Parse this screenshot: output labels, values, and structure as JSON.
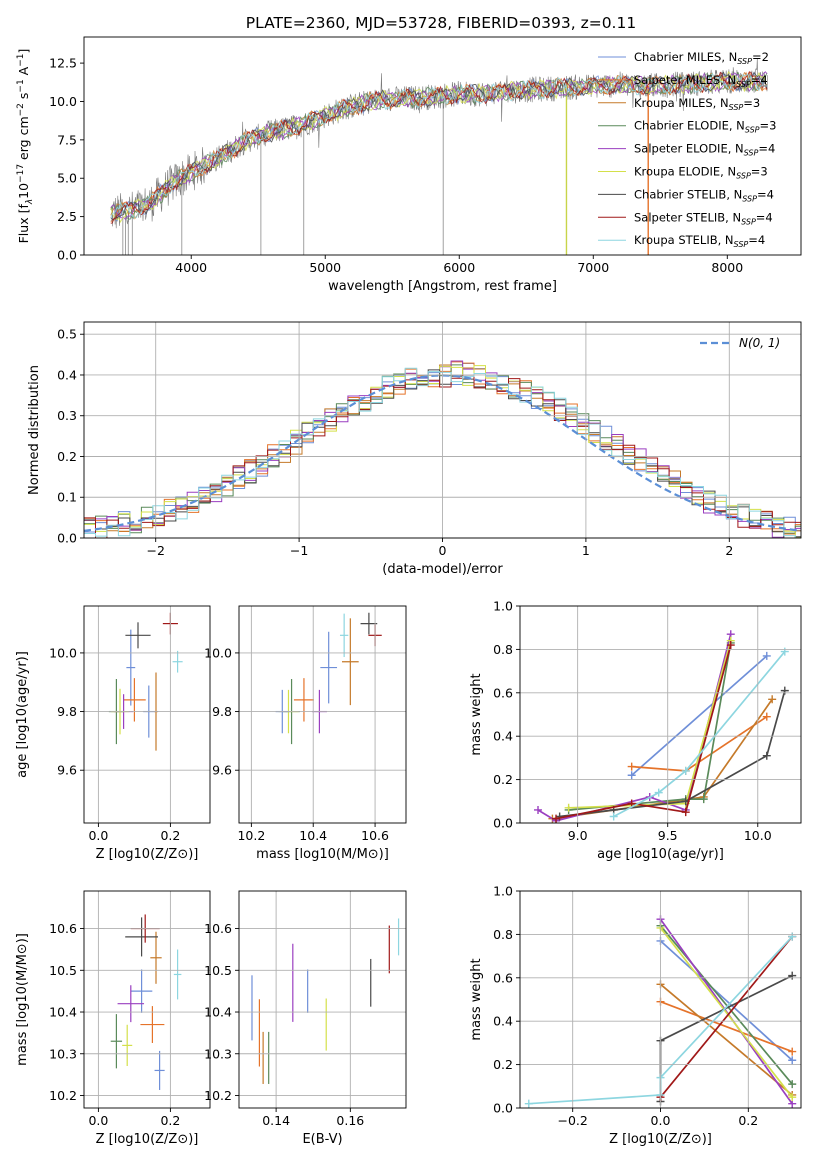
{
  "figure": {
    "title": "PLATE=2360, MJD=53728, FIBERID=0393, z=0.11"
  },
  "colors": {
    "series": [
      "#6f8fd8",
      "#e5732a",
      "#c57a2a",
      "#5a8a5a",
      "#9a3fc0",
      "#d4e04a",
      "#4a4a4a",
      "#a01818",
      "#8dd6e0"
    ],
    "spectrum": "#7a7a7a",
    "gaussian": "#5b8fd6",
    "grid": "#b0b0b0"
  },
  "legend_spectrum": [
    {
      "label": "Chabrier MILES, N",
      "sub": "SSP",
      "suffix": "=2"
    },
    {
      "label": "Salpeter MILES, N",
      "sub": "SSP",
      "suffix": "=4"
    },
    {
      "label": "Kroupa MILES, N",
      "sub": "SSP",
      "suffix": "=3"
    },
    {
      "label": "Chabrier ELODIE, N",
      "sub": "SSP",
      "suffix": "=3"
    },
    {
      "label": "Salpeter ELODIE, N",
      "sub": "SSP",
      "suffix": "=4"
    },
    {
      "label": "Kroupa ELODIE, N",
      "sub": "SSP",
      "suffix": "=3"
    },
    {
      "label": "Chabrier STELIB, N",
      "sub": "SSP",
      "suffix": "=4"
    },
    {
      "label": "Salpeter STELIB, N",
      "sub": "SSP",
      "suffix": "=4"
    },
    {
      "label": "Kroupa STELIB, N",
      "sub": "SSP",
      "suffix": "=4"
    }
  ],
  "chart_data": [
    {
      "id": "spectrum",
      "type": "line",
      "xlabel": "wavelength [Angstrom, rest frame]",
      "ylabel_parts": {
        "a": "Flux [f",
        "b": "λ",
        "c": "10",
        "d": "−17",
        "e": " erg cm",
        "f": "−2",
        "g": " s",
        "h": "−1",
        "i": " A",
        "j": "−1",
        "k": "]"
      },
      "xlim": [
        3200,
        8550
      ],
      "ylim": [
        0,
        14.2
      ],
      "xticks": [
        4000,
        5000,
        6000,
        7000,
        8000
      ],
      "yticks": [
        0.0,
        2.5,
        5.0,
        7.5,
        10.0,
        12.5
      ],
      "continuum": [
        [
          3400,
          2.7
        ],
        [
          3550,
          2.9
        ],
        [
          3700,
          3.4
        ],
        [
          3850,
          4.6
        ],
        [
          4000,
          5.4
        ],
        [
          4200,
          6.3
        ],
        [
          4400,
          7.4
        ],
        [
          4600,
          8.0
        ],
        [
          4800,
          8.4
        ],
        [
          5000,
          9.1
        ],
        [
          5200,
          9.7
        ],
        [
          5400,
          10.1
        ],
        [
          5600,
          10.2
        ],
        [
          5800,
          10.3
        ],
        [
          6000,
          10.5
        ],
        [
          6200,
          10.5
        ],
        [
          6400,
          10.7
        ],
        [
          6600,
          10.8
        ],
        [
          6800,
          10.9
        ],
        [
          7000,
          11.0
        ],
        [
          7200,
          11.1
        ],
        [
          7400,
          11.0
        ],
        [
          7600,
          11.1
        ],
        [
          7800,
          11.2
        ],
        [
          8000,
          11.3
        ],
        [
          8200,
          11.3
        ],
        [
          8300,
          11.3
        ]
      ]
    },
    {
      "id": "residuals",
      "type": "histogram",
      "xlabel": "(data-model)/error",
      "ylabel": "Normed distribution",
      "xlim": [
        -2.5,
        2.5
      ],
      "ylim": [
        0,
        0.53
      ],
      "xticks": [
        -2,
        -1,
        0,
        1,
        2
      ],
      "yticks": [
        0.0,
        0.1,
        0.2,
        0.3,
        0.4,
        0.5
      ],
      "legend": "N(0, 1)",
      "bin_width": 0.1,
      "bin_start": -2.5,
      "base_values": [
        0.02,
        0.025,
        0.03,
        0.035,
        0.04,
        0.05,
        0.055,
        0.07,
        0.075,
        0.09,
        0.1,
        0.115,
        0.13,
        0.15,
        0.165,
        0.18,
        0.2,
        0.215,
        0.235,
        0.255,
        0.275,
        0.29,
        0.31,
        0.33,
        0.34,
        0.355,
        0.37,
        0.38,
        0.39,
        0.395,
        0.4,
        0.4,
        0.405,
        0.4,
        0.395,
        0.39,
        0.38,
        0.37,
        0.36,
        0.345,
        0.33,
        0.315,
        0.3,
        0.28,
        0.26,
        0.245,
        0.225,
        0.205,
        0.19,
        0.17,
        0.155,
        0.135,
        0.12,
        0.105,
        0.09,
        0.08,
        0.068,
        0.055,
        0.045,
        0.04,
        0.03,
        0.025,
        0.02
      ]
    },
    {
      "id": "age-vs-Z",
      "type": "scatter",
      "xlabel": "Z [log10(Z/Z⊙)]",
      "ylabel": "age  [log10(age/yr)]",
      "xlim": [
        -0.04,
        0.31
      ],
      "ylim": [
        9.42,
        10.16
      ],
      "xticks": [
        0.0,
        0.2
      ],
      "yticks": [
        9.6,
        9.8,
        10.0
      ],
      "points": [
        [
          0.09,
          9.95,
          0.07,
          0.35
        ],
        [
          0.1,
          9.84,
          0.18,
          0.2
        ],
        [
          0.16,
          9.8,
          0.03,
          0.36
        ],
        [
          0.05,
          9.8,
          0.12,
          0.3
        ],
        [
          0.07,
          9.8,
          0.15,
          0.16
        ],
        [
          0.06,
          9.8,
          0.14,
          0.21
        ],
        [
          0.11,
          10.06,
          0.2,
          0.12
        ],
        [
          0.2,
          10.1,
          0.12,
          0.1
        ],
        [
          0.22,
          9.97,
          0.08,
          0.1
        ],
        [
          0.14,
          9.8,
          0.09,
          0.24
        ]
      ]
    },
    {
      "id": "age-vs-mass",
      "type": "scatter",
      "xlabel": "mass [log10(M/M⊙)]",
      "ylabel": "",
      "xlim": [
        10.16,
        10.7
      ],
      "ylim": [
        9.42,
        10.16
      ],
      "xticks": [
        10.2,
        10.4,
        10.6
      ],
      "yticks": [
        9.6,
        9.8,
        10.0
      ],
      "points": [
        [
          10.45,
          9.95,
          0.1,
          0.33
        ],
        [
          10.37,
          9.84,
          0.12,
          0.2
        ],
        [
          10.52,
          9.97,
          0.1,
          0.4
        ],
        [
          10.33,
          9.8,
          0.1,
          0.3
        ],
        [
          10.42,
          9.8,
          0.09,
          0.2
        ],
        [
          10.32,
          9.8,
          0.12,
          0.2
        ],
        [
          10.58,
          10.1,
          0.1,
          0.1
        ],
        [
          10.6,
          10.06,
          0.08,
          0.1
        ],
        [
          10.5,
          10.06,
          0.05,
          0.2
        ],
        [
          10.3,
          9.8,
          0.08,
          0.2
        ]
      ]
    },
    {
      "id": "massweight-vs-age",
      "type": "line",
      "xlabel": "age  [log10(age/yr)]",
      "ylabel": "mass weight",
      "xlim": [
        8.68,
        10.24
      ],
      "ylim": [
        0.0,
        1.0
      ],
      "xticks": [
        9.0,
        9.5,
        10.0
      ],
      "yticks": [
        0.0,
        0.2,
        0.4,
        0.6,
        0.8,
        1.0
      ],
      "series": [
        {
          "values": [
            [
              9.3,
              0.22
            ],
            [
              10.05,
              0.77
            ]
          ]
        },
        {
          "values": [
            [
              9.3,
              0.26
            ],
            [
              9.6,
              0.24
            ],
            [
              10.05,
              0.49
            ]
          ]
        },
        {
          "values": [
            [
              8.86,
              0.02
            ],
            [
              9.2,
              0.06
            ],
            [
              9.7,
              0.12
            ],
            [
              10.08,
              0.57
            ]
          ]
        },
        {
          "values": [
            [
              8.95,
              0.06
            ],
            [
              9.6,
              0.11
            ],
            [
              9.7,
              0.11
            ],
            [
              9.85,
              0.83
            ]
          ]
        },
        {
          "values": [
            [
              8.78,
              0.06
            ],
            [
              8.88,
              0.01
            ],
            [
              9.4,
              0.12
            ],
            [
              9.6,
              0.06
            ],
            [
              9.85,
              0.87
            ]
          ]
        },
        {
          "values": [
            [
              8.95,
              0.07
            ],
            [
              9.6,
              0.09
            ],
            [
              9.85,
              0.84
            ]
          ]
        },
        {
          "values": [
            [
              8.9,
              0.03
            ],
            [
              9.2,
              0.06
            ],
            [
              9.6,
              0.1
            ],
            [
              10.05,
              0.31
            ],
            [
              10.15,
              0.61
            ]
          ]
        },
        {
          "values": [
            [
              8.88,
              0.02
            ],
            [
              9.3,
              0.09
            ],
            [
              9.6,
              0.05
            ],
            [
              9.85,
              0.82
            ]
          ]
        },
        {
          "values": [
            [
              9.2,
              0.03
            ],
            [
              9.45,
              0.14
            ],
            [
              9.6,
              0.24
            ],
            [
              10.15,
              0.79
            ]
          ]
        }
      ]
    },
    {
      "id": "mass-vs-Z",
      "type": "scatter",
      "xlabel": "Z [log10(Z/Z⊙)]",
      "ylabel": "mass [log10(M/M⊙)]",
      "xlim": [
        -0.04,
        0.31
      ],
      "ylim": [
        10.17,
        10.69
      ],
      "xticks": [
        0.0,
        0.2
      ],
      "yticks": [
        10.2,
        10.3,
        10.4,
        10.5,
        10.6
      ],
      "points": [
        [
          0.12,
          10.45,
          0.17,
          0.2
        ],
        [
          0.15,
          10.37,
          0.19,
          0.17
        ],
        [
          0.16,
          10.53,
          0.09,
          0.24
        ],
        [
          0.05,
          10.33,
          0.09,
          0.25
        ],
        [
          0.09,
          10.42,
          0.21,
          0.17
        ],
        [
          0.08,
          10.32,
          0.08,
          0.19
        ],
        [
          0.12,
          10.58,
          0.26,
          0.18
        ],
        [
          0.13,
          10.6,
          0.23,
          0.13
        ],
        [
          0.22,
          10.49,
          0.06,
          0.23
        ],
        [
          0.17,
          10.26,
          0.08,
          0.18
        ]
      ]
    },
    {
      "id": "mass-vs-EBV",
      "type": "scatter",
      "xlabel": "E(B-V)",
      "ylabel": "",
      "xlim": [
        0.13,
        0.175
      ],
      "ylim": [
        10.17,
        10.69
      ],
      "xticks": [
        0.14,
        0.16
      ],
      "yticks": [
        10.2,
        10.3,
        10.4,
        10.5,
        10.6
      ],
      "points": [
        [
          0.1335,
          10.41,
          0,
          0.3
        ],
        [
          0.1355,
          10.35,
          0,
          0.31
        ],
        [
          0.1365,
          10.29,
          0,
          0.24
        ],
        [
          0.138,
          10.29,
          0,
          0.24
        ],
        [
          0.1445,
          10.47,
          0,
          0.36
        ],
        [
          0.1535,
          10.37,
          0,
          0.24
        ],
        [
          0.1655,
          10.47,
          0,
          0.22
        ],
        [
          0.1705,
          10.55,
          0,
          0.22
        ],
        [
          0.173,
          10.58,
          0,
          0.17
        ],
        [
          0.1485,
          10.45,
          0,
          0.2
        ]
      ]
    },
    {
      "id": "massweight-vs-Z",
      "type": "line",
      "xlabel": "Z [log10(Z/Z⊙)]",
      "ylabel": "mass weight",
      "xlim": [
        -0.32,
        0.32
      ],
      "ylim": [
        0.0,
        1.0
      ],
      "xticks": [
        -0.2,
        0.0,
        0.2
      ],
      "yticks": [
        0.0,
        0.2,
        0.4,
        0.6,
        0.8,
        1.0
      ],
      "series": [
        {
          "values": [
            [
              0.0,
              0.77
            ],
            [
              0.3,
              0.22
            ]
          ]
        },
        {
          "values": [
            [
              0.0,
              0.49
            ],
            [
              0.3,
              0.26
            ]
          ]
        },
        {
          "values": [
            [
              0.0,
              0.57
            ],
            [
              0.3,
              0.06
            ]
          ]
        },
        {
          "values": [
            [
              0.0,
              0.84
            ],
            [
              0.3,
              0.11
            ]
          ]
        },
        {
          "values": [
            [
              0.0,
              0.87
            ],
            [
              0.3,
              0.02
            ]
          ]
        },
        {
          "values": [
            [
              0.0,
              0.83
            ],
            [
              0.3,
              0.05
            ]
          ]
        },
        {
          "values": [
            [
              0.0,
              0.03
            ],
            [
              0.0,
              0.31
            ],
            [
              0.3,
              0.61
            ]
          ]
        },
        {
          "values": [
            [
              0.0,
              0.05
            ],
            [
              0.3,
              0.79
            ]
          ]
        },
        {
          "values": [
            [
              -0.3,
              0.02
            ],
            [
              0.0,
              0.06
            ],
            [
              0.0,
              0.14
            ],
            [
              0.3,
              0.79
            ]
          ]
        }
      ]
    }
  ]
}
